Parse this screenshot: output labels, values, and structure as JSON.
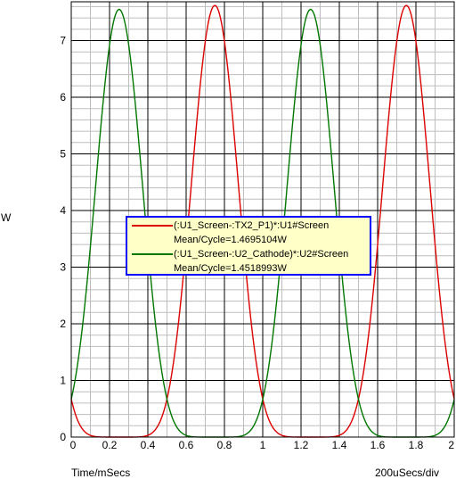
{
  "chart_data": {
    "type": "line",
    "title": "",
    "xlabel": "Time/mSecs",
    "xscale_label": "200uSecs/div",
    "ylabel": "W",
    "xlim": [
      0,
      2
    ],
    "ylim": [
      0,
      7.6
    ],
    "x_ticks": [
      "0",
      "0.2",
      "0.4",
      "0.6",
      "0.8",
      "1",
      "1.2",
      "1.4",
      "1.6",
      "1.8",
      "2"
    ],
    "y_ticks": [
      "0",
      "1",
      "2",
      "3",
      "4",
      "5",
      "6",
      "7"
    ],
    "grid": true,
    "legend_position": "center",
    "colors": {
      "red": "#dd0000",
      "green": "#007700",
      "legend_bg": "#ffffc8",
      "legend_border": "#0000ff"
    },
    "series": [
      {
        "name": "(:U1_Screen-:TX2_P1)*:U1#Screen",
        "stat": "Mean/Cycle=1.4695104W",
        "color": "#dd0000",
        "period": 1.0,
        "peak_x": [
          0.75,
          1.75
        ],
        "peak_y": 7.62,
        "pulse_halfwidth": 0.25
      },
      {
        "name": "(:U1_Screen-:U2_Cathode)*:U2#Screen",
        "stat": "Mean/Cycle=1.4518993W",
        "color": "#007700",
        "period": 1.0,
        "peak_x": [
          0.25,
          1.25
        ],
        "peak_y": 7.55,
        "pulse_halfwidth": 0.25
      }
    ]
  }
}
